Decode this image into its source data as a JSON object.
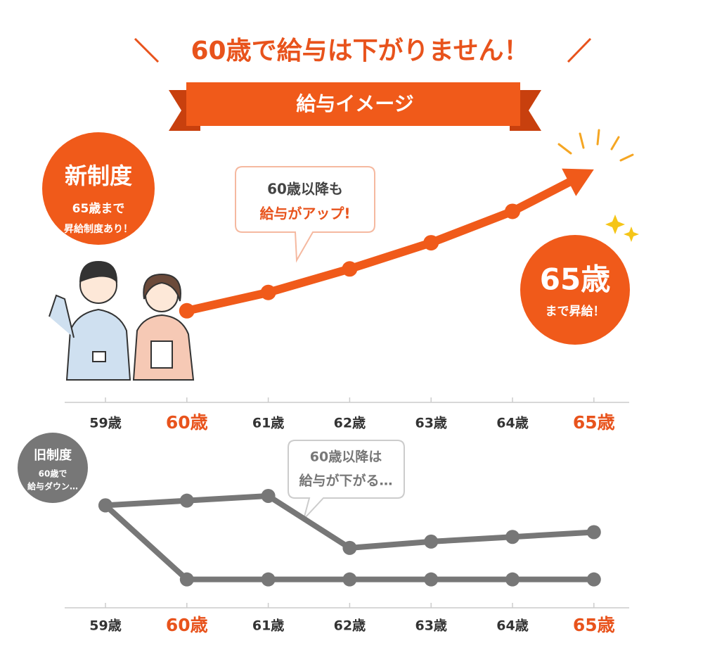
{
  "title": "60歳で給与は下がりません！",
  "banner": "給与イメージ",
  "chart_data": [
    {
      "type": "line",
      "arrow": true,
      "highlight": [
        1,
        6
      ],
      "highlight_color": "#e8531c",
      "categories": [
        "59歳",
        "60歳",
        "61歳",
        "62歳",
        "63歳",
        "64歳",
        "65歳"
      ],
      "ylim": [
        0,
        100
      ],
      "series": [
        {
          "color": "#f05a1a",
          "values": [
            null,
            35,
            42,
            51,
            61,
            73,
            89
          ]
        }
      ],
      "badge": {
        "title": "新制度",
        "lines": [
          "65歳まで",
          "昇給制度あり！"
        ]
      },
      "callout": [
        "60歳以降も",
        "給与がアップ!"
      ],
      "goal": [
        "65歳",
        "まで昇給！"
      ]
    },
    {
      "type": "line",
      "arrow": false,
      "highlight": [
        1,
        6
      ],
      "highlight_color": "#e8531c",
      "categories": [
        "59歳",
        "60歳",
        "61歳",
        "62歳",
        "63歳",
        "64歳",
        "65歳"
      ],
      "ylim": [
        0,
        100
      ],
      "series": [
        {
          "color": "#777777",
          "values": [
            65,
            68,
            71,
            38,
            42,
            45,
            48
          ]
        },
        {
          "color": "#777777",
          "values": [
            65,
            18,
            18,
            18,
            18,
            18,
            18
          ]
        }
      ],
      "badge": {
        "title": "旧制度",
        "lines": [
          "60歳で",
          "給与ダウン…"
        ]
      },
      "callout": [
        "60歳以降は",
        "給与が下がる…"
      ]
    }
  ]
}
